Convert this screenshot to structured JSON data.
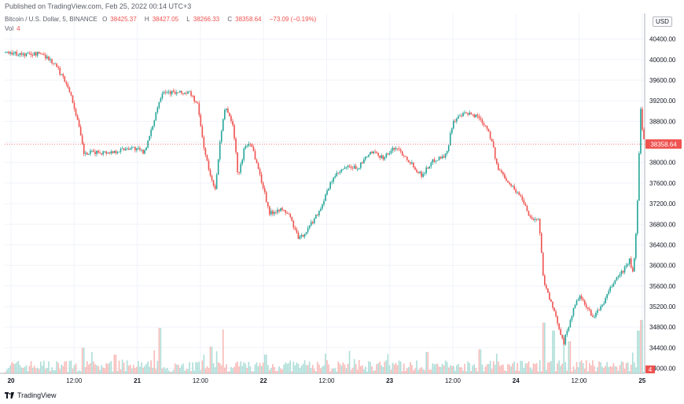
{
  "header": {
    "published": "Published on TradingView.com, Feb 25, 2022 00:14 UTC+3"
  },
  "legend": {
    "symbol": "Bitcoin / U.S. Dollar, 5, BINANCE",
    "open_label": "O",
    "open": "38425.37",
    "high_label": "H",
    "high": "38427.05",
    "low_label": "L",
    "low": "38266.33",
    "close_label": "C",
    "close": "38358.64",
    "change": "−73.09 (−0.19%)",
    "vol_label": "Vol",
    "vol_value": "4"
  },
  "price_axis": {
    "currency": "USD",
    "last_price_tag": "38358.64",
    "volume_tag": "4"
  },
  "footer": {
    "brand": "TradingView",
    "logo_icon": "tradingview-logo-icon"
  },
  "colors": {
    "up": "#26a69a",
    "down": "#ef5350",
    "grid": "#f0f3fa",
    "axis_text": "#131722",
    "last_price_line": "#ef5350"
  },
  "chart_data": {
    "type": "candlestick",
    "title": "Bitcoin / U.S. Dollar, 5, BINANCE",
    "xlabel": "",
    "ylabel": "",
    "ylim": [
      33900,
      40900
    ],
    "y_ticks": [
      34000,
      34400,
      34800,
      35200,
      35600,
      36000,
      36400,
      36800,
      37200,
      37600,
      38000,
      38400,
      38800,
      39200,
      39600,
      40000,
      40400
    ],
    "y_tick_labels": [
      "34000.00",
      "34400.00",
      "34800.00",
      "35200.00",
      "35600.00",
      "36000.00",
      "36400.00",
      "36800.00",
      "37200.00",
      "37600.00",
      "38000.00",
      "38400.00",
      "38800.00",
      "39200.00",
      "39600.00",
      "40000.00",
      "40400.00"
    ],
    "x_tick_labels": [
      "20",
      "12:00",
      "21",
      "12:00",
      "22",
      "12:00",
      "23",
      "12:00",
      "24",
      "12:00",
      "25"
    ],
    "x_tick_times": [
      0,
      0.5,
      1,
      1.5,
      2,
      2.5,
      3,
      3.5,
      4,
      4.5,
      5
    ],
    "x_range_days": [
      -0.05,
      5.02
    ],
    "last_price": 38358.64,
    "grid": true,
    "price_path": [
      [
        -0.05,
        40150
      ],
      [
        0.1,
        40100
      ],
      [
        0.25,
        40120
      ],
      [
        0.35,
        39900
      ],
      [
        0.45,
        39500
      ],
      [
        0.52,
        38900
      ],
      [
        0.58,
        38150
      ],
      [
        0.65,
        38200
      ],
      [
        0.8,
        38200
      ],
      [
        0.95,
        38300
      ],
      [
        1.05,
        38200
      ],
      [
        1.1,
        38500
      ],
      [
        1.15,
        39000
      ],
      [
        1.2,
        39400
      ],
      [
        1.3,
        39350
      ],
      [
        1.42,
        39350
      ],
      [
        1.48,
        39100
      ],
      [
        1.52,
        38400
      ],
      [
        1.58,
        37700
      ],
      [
        1.62,
        37500
      ],
      [
        1.66,
        38500
      ],
      [
        1.7,
        39100
      ],
      [
        1.76,
        38700
      ],
      [
        1.8,
        37700
      ],
      [
        1.85,
        38300
      ],
      [
        1.9,
        38400
      ],
      [
        2.0,
        37500
      ],
      [
        2.05,
        37000
      ],
      [
        2.12,
        37100
      ],
      [
        2.2,
        37000
      ],
      [
        2.28,
        36500
      ],
      [
        2.35,
        36700
      ],
      [
        2.45,
        37100
      ],
      [
        2.55,
        37700
      ],
      [
        2.65,
        37900
      ],
      [
        2.75,
        37900
      ],
      [
        2.85,
        38200
      ],
      [
        2.95,
        38100
      ],
      [
        3.05,
        38300
      ],
      [
        3.15,
        38050
      ],
      [
        3.25,
        37750
      ],
      [
        3.35,
        38050
      ],
      [
        3.45,
        38150
      ],
      [
        3.5,
        38800
      ],
      [
        3.6,
        38950
      ],
      [
        3.7,
        38900
      ],
      [
        3.78,
        38650
      ],
      [
        3.82,
        38300
      ],
      [
        3.85,
        37900
      ],
      [
        3.92,
        37700
      ],
      [
        3.98,
        37500
      ],
      [
        4.05,
        37300
      ],
      [
        4.12,
        36900
      ],
      [
        4.18,
        36900
      ],
      [
        4.22,
        35700
      ],
      [
        4.3,
        35100
      ],
      [
        4.38,
        34500
      ],
      [
        4.45,
        35100
      ],
      [
        4.5,
        35400
      ],
      [
        4.58,
        35100
      ],
      [
        4.62,
        35000
      ],
      [
        4.7,
        35300
      ],
      [
        4.78,
        35700
      ],
      [
        4.85,
        35900
      ],
      [
        4.9,
        36100
      ],
      [
        4.93,
        35800
      ],
      [
        4.96,
        37000
      ],
      [
        4.98,
        38500
      ],
      [
        4.99,
        39100
      ],
      [
        5.0,
        38700
      ],
      [
        5.02,
        38358
      ]
    ],
    "volume_spikes": [
      [
        0.57,
        0.48
      ],
      [
        0.82,
        0.35
      ],
      [
        1.18,
        0.85
      ],
      [
        1.58,
        0.5
      ],
      [
        1.68,
        0.82
      ],
      [
        2.02,
        0.35
      ],
      [
        3.3,
        0.4
      ],
      [
        3.72,
        0.45
      ],
      [
        4.22,
        0.95
      ],
      [
        4.3,
        0.8
      ],
      [
        4.38,
        0.72
      ],
      [
        4.42,
        0.6
      ],
      [
        4.97,
        0.8
      ],
      [
        5.0,
        1.0
      ]
    ]
  }
}
